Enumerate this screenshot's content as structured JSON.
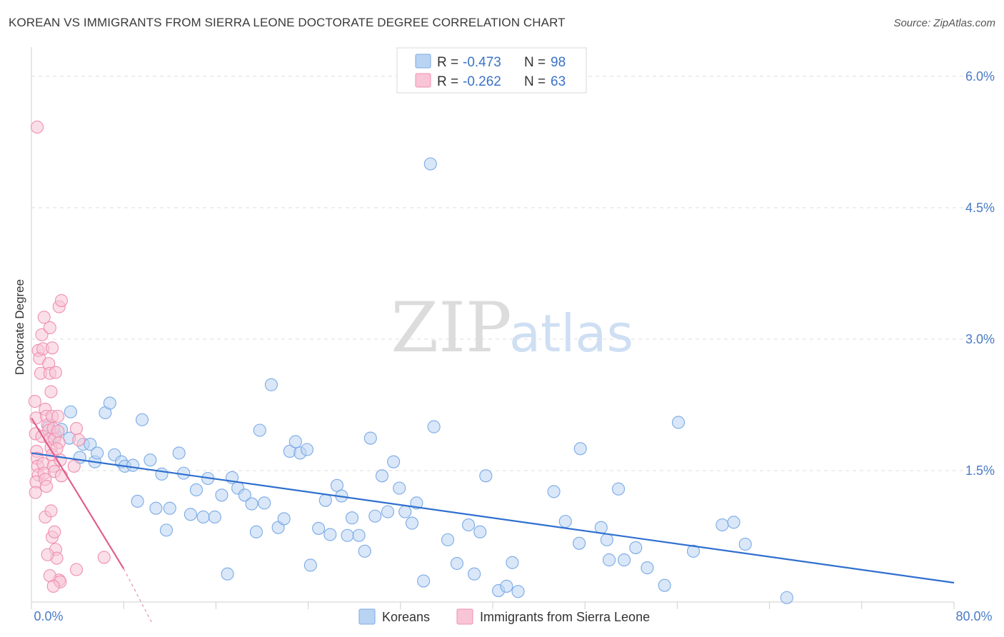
{
  "title": "KOREAN VS IMMIGRANTS FROM SIERRA LEONE DOCTORATE DEGREE CORRELATION CHART",
  "source": "Source: ZipAtlas.com",
  "watermark": {
    "zip": "ZIP",
    "atlas": "atlas"
  },
  "chart_data": {
    "type": "scatter",
    "ylabel": "Doctorate Degree",
    "xlim": [
      0,
      80
    ],
    "ylim": [
      0,
      6.3
    ],
    "x_tick_labels": [
      {
        "value": 0,
        "label": "0.0%"
      },
      {
        "value": 80,
        "label": "80.0%"
      }
    ],
    "y_tick_labels": [
      {
        "value": 1.5,
        "label": "1.5%"
      },
      {
        "value": 3.0,
        "label": "3.0%"
      },
      {
        "value": 4.5,
        "label": "4.5%"
      },
      {
        "value": 6.0,
        "label": "6.0%"
      }
    ],
    "legend": [
      {
        "r_label": "R = ",
        "r_value": "-0.473",
        "n_label": "N = ",
        "n_value": "98",
        "color": "#7aaae6",
        "fill": "#b9d3f3"
      },
      {
        "r_label": "R = ",
        "r_value": "-0.262",
        "n_label": "N = ",
        "n_value": "63",
        "color": "#ef8fb0",
        "fill": "#f8c5d6"
      }
    ],
    "series": [
      {
        "name": "Koreans",
        "color": "#7aaae6",
        "fill": "#b9d3f3",
        "line_color": "#2f6fcf",
        "trend": {
          "x0": 0,
          "y0": 1.7,
          "x1": 80,
          "y1": 0.22
        },
        "points": [
          [
            1.5,
            2.0
          ],
          [
            2.1,
            1.9
          ],
          [
            2.6,
            1.97
          ],
          [
            3.3,
            1.87
          ],
          [
            3.4,
            2.17
          ],
          [
            4.2,
            1.65
          ],
          [
            4.5,
            1.8
          ],
          [
            5.1,
            1.8
          ],
          [
            5.5,
            1.6
          ],
          [
            5.7,
            1.7
          ],
          [
            6.4,
            2.16
          ],
          [
            6.8,
            2.27
          ],
          [
            7.2,
            1.68
          ],
          [
            7.8,
            1.6
          ],
          [
            8.1,
            1.55
          ],
          [
            8.8,
            1.56
          ],
          [
            9.2,
            1.15
          ],
          [
            9.6,
            2.08
          ],
          [
            10.3,
            1.62
          ],
          [
            10.8,
            1.07
          ],
          [
            11.3,
            1.46
          ],
          [
            11.7,
            0.82
          ],
          [
            12.0,
            1.07
          ],
          [
            12.8,
            1.7
          ],
          [
            13.2,
            1.47
          ],
          [
            13.8,
            1.0
          ],
          [
            14.3,
            1.28
          ],
          [
            14.9,
            0.97
          ],
          [
            15.3,
            1.41
          ],
          [
            15.9,
            0.97
          ],
          [
            16.5,
            1.22
          ],
          [
            17.0,
            0.32
          ],
          [
            17.4,
            1.42
          ],
          [
            17.9,
            1.3
          ],
          [
            18.5,
            1.22
          ],
          [
            19.1,
            1.12
          ],
          [
            19.5,
            0.8
          ],
          [
            19.8,
            1.96
          ],
          [
            20.2,
            1.13
          ],
          [
            20.8,
            2.48
          ],
          [
            21.4,
            0.85
          ],
          [
            21.9,
            0.95
          ],
          [
            22.4,
            1.72
          ],
          [
            22.9,
            1.83
          ],
          [
            23.3,
            1.7
          ],
          [
            23.9,
            1.74
          ],
          [
            24.2,
            0.42
          ],
          [
            24.9,
            0.84
          ],
          [
            25.5,
            1.16
          ],
          [
            25.9,
            0.77
          ],
          [
            26.5,
            1.33
          ],
          [
            26.9,
            1.21
          ],
          [
            27.4,
            0.76
          ],
          [
            27.8,
            0.96
          ],
          [
            28.4,
            0.76
          ],
          [
            28.9,
            0.58
          ],
          [
            29.4,
            1.87
          ],
          [
            29.8,
            0.98
          ],
          [
            30.4,
            1.44
          ],
          [
            30.9,
            1.03
          ],
          [
            31.4,
            1.6
          ],
          [
            31.9,
            1.3
          ],
          [
            32.4,
            1.03
          ],
          [
            33.0,
            0.9
          ],
          [
            33.4,
            1.13
          ],
          [
            34.0,
            0.24
          ],
          [
            34.6,
            5.0
          ],
          [
            34.9,
            2.0
          ],
          [
            36.1,
            0.71
          ],
          [
            36.9,
            0.44
          ],
          [
            37.9,
            0.88
          ],
          [
            38.4,
            0.32
          ],
          [
            38.9,
            0.8
          ],
          [
            39.4,
            1.44
          ],
          [
            40.5,
            0.13
          ],
          [
            41.2,
            0.18
          ],
          [
            41.7,
            0.45
          ],
          [
            42.2,
            0.12
          ],
          [
            45.3,
            1.26
          ],
          [
            46.3,
            0.92
          ],
          [
            47.5,
            0.67
          ],
          [
            47.6,
            1.75
          ],
          [
            49.4,
            0.85
          ],
          [
            49.9,
            0.71
          ],
          [
            50.1,
            0.48
          ],
          [
            50.9,
            1.29
          ],
          [
            51.4,
            0.48
          ],
          [
            52.4,
            0.62
          ],
          [
            53.4,
            0.39
          ],
          [
            54.9,
            0.19
          ],
          [
            56.1,
            2.05
          ],
          [
            57.4,
            0.58
          ],
          [
            59.9,
            0.88
          ],
          [
            60.9,
            0.91
          ],
          [
            61.9,
            0.66
          ],
          [
            65.5,
            0.05
          ]
        ]
      },
      {
        "name": "Immigrants from Sierra Leone",
        "color": "#ef8fb0",
        "fill": "#f8c5d6",
        "line_color": "#e0608c",
        "trend": {
          "x0": 0,
          "y0": 2.1,
          "x1": 8.0,
          "y1": 0.38
        },
        "trend_dashed": {
          "x0": 8.0,
          "y0": 0.38,
          "x1": 10.5,
          "y1": -0.25
        },
        "points": [
          [
            0.5,
            5.42
          ],
          [
            0.3,
            2.29
          ],
          [
            0.4,
            2.1
          ],
          [
            0.35,
            1.92
          ],
          [
            0.45,
            1.72
          ],
          [
            0.5,
            1.64
          ],
          [
            0.55,
            1.55
          ],
          [
            0.6,
            1.45
          ],
          [
            0.4,
            1.37
          ],
          [
            0.35,
            1.25
          ],
          [
            0.6,
            2.87
          ],
          [
            0.7,
            2.78
          ],
          [
            0.8,
            2.61
          ],
          [
            0.9,
            1.89
          ],
          [
            1.0,
            1.58
          ],
          [
            1.1,
            1.47
          ],
          [
            1.2,
            1.4
          ],
          [
            1.3,
            1.32
          ],
          [
            0.9,
            3.05
          ],
          [
            1.0,
            2.89
          ],
          [
            1.1,
            3.25
          ],
          [
            1.2,
            2.2
          ],
          [
            1.3,
            2.12
          ],
          [
            1.4,
            2.02
          ],
          [
            1.5,
            1.96
          ],
          [
            1.6,
            1.86
          ],
          [
            1.7,
            1.76
          ],
          [
            1.8,
            1.68
          ],
          [
            1.9,
            1.55
          ],
          [
            2.0,
            1.49
          ],
          [
            1.5,
            2.72
          ],
          [
            1.6,
            2.61
          ],
          [
            1.7,
            2.4
          ],
          [
            1.8,
            2.12
          ],
          [
            1.9,
            1.98
          ],
          [
            2.0,
            1.86
          ],
          [
            1.6,
            3.13
          ],
          [
            1.8,
            2.9
          ],
          [
            2.1,
            2.62
          ],
          [
            2.3,
            2.12
          ],
          [
            2.4,
            1.82
          ],
          [
            2.5,
            1.62
          ],
          [
            2.6,
            1.44
          ],
          [
            2.3,
            1.95
          ],
          [
            2.2,
            1.75
          ],
          [
            2.4,
            3.37
          ],
          [
            2.6,
            3.44
          ],
          [
            1.2,
            0.97
          ],
          [
            1.7,
            1.04
          ],
          [
            1.8,
            0.74
          ],
          [
            2.0,
            0.8
          ],
          [
            2.1,
            0.6
          ],
          [
            2.2,
            0.5
          ],
          [
            2.4,
            0.25
          ],
          [
            2.5,
            0.23
          ],
          [
            1.4,
            0.54
          ],
          [
            1.6,
            0.3
          ],
          [
            1.9,
            0.18
          ],
          [
            3.9,
            1.98
          ],
          [
            4.1,
            1.85
          ],
          [
            3.7,
            1.55
          ],
          [
            3.9,
            0.37
          ],
          [
            6.3,
            0.51
          ]
        ]
      }
    ]
  },
  "bottom_legend": [
    {
      "label": "Koreans"
    },
    {
      "label": "Immigrants from Sierra Leone"
    }
  ]
}
